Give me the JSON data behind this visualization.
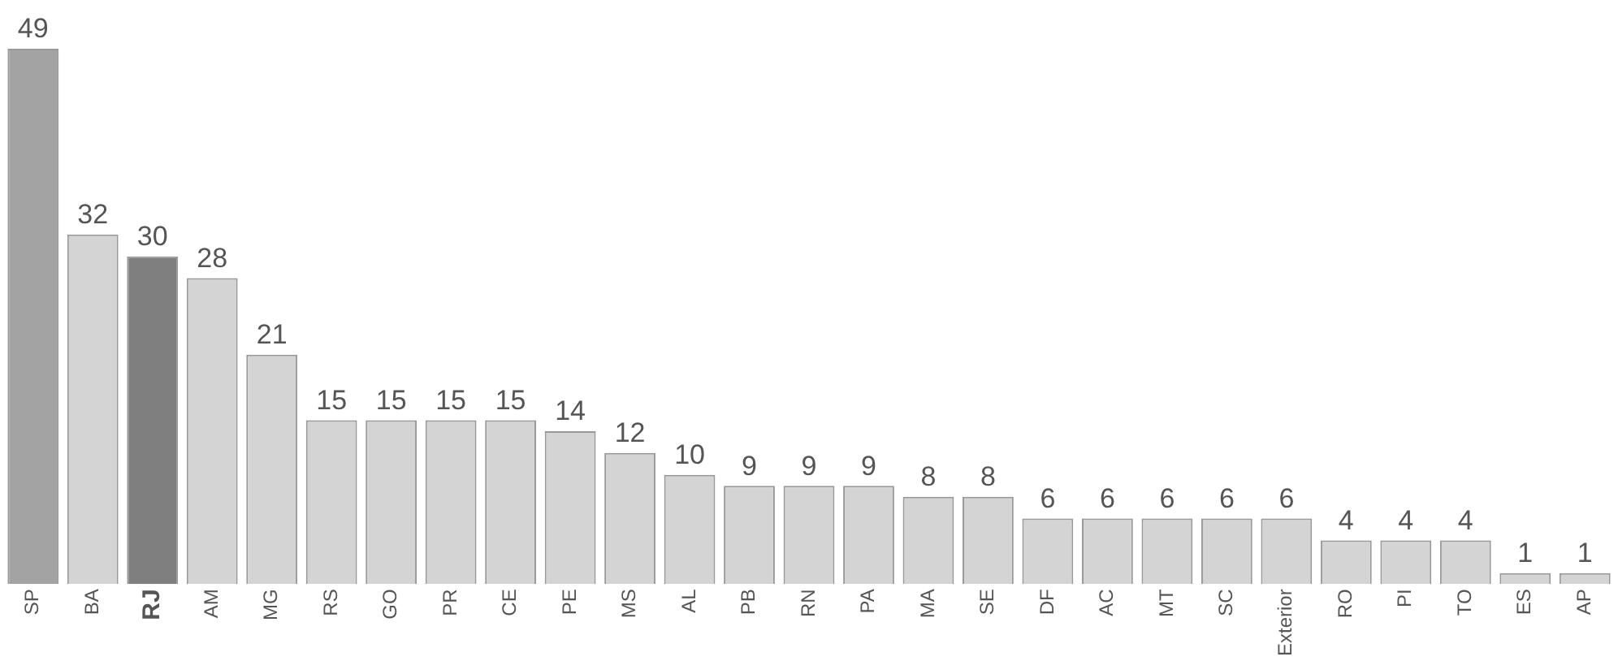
{
  "chart_data": {
    "type": "bar",
    "categories": [
      "SP",
      "BA",
      "RJ",
      "AM",
      "MG",
      "RS",
      "GO",
      "PR",
      "CE",
      "PE",
      "MS",
      "AL",
      "PB",
      "RN",
      "PA",
      "MA",
      "SE",
      "DF",
      "AC",
      "MT",
      "SC",
      "Exterior",
      "RO",
      "PI",
      "TO",
      "ES",
      "AP"
    ],
    "values": [
      49,
      32,
      30,
      28,
      21,
      15,
      15,
      15,
      15,
      14,
      12,
      10,
      9,
      9,
      9,
      8,
      8,
      6,
      6,
      6,
      6,
      6,
      4,
      4,
      4,
      1,
      1
    ],
    "colors": [
      "#a3a3a3",
      "#d4d4d4",
      "#7f7f7f",
      "#d4d4d4",
      "#d4d4d4",
      "#d4d4d4",
      "#d4d4d4",
      "#d4d4d4",
      "#d4d4d4",
      "#d4d4d4",
      "#d4d4d4",
      "#d4d4d4",
      "#d4d4d4",
      "#d4d4d4",
      "#d4d4d4",
      "#d4d4d4",
      "#d4d4d4",
      "#d4d4d4",
      "#d4d4d4",
      "#d4d4d4",
      "#d4d4d4",
      "#d4d4d4",
      "#d4d4d4",
      "#d4d4d4",
      "#d4d4d4",
      "#d4d4d4",
      "#d4d4d4"
    ],
    "data_labels": true,
    "grid": false,
    "legend": false
  }
}
